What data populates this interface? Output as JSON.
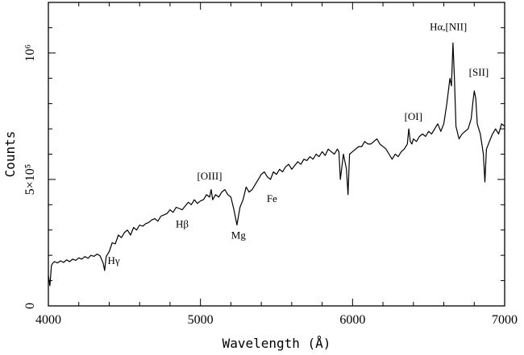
{
  "chart_data": {
    "type": "line",
    "title": "",
    "xlabel": "Wavelength (Å)",
    "ylabel": "Counts",
    "xlim": [
      4000,
      7000
    ],
    "ylim": [
      0,
      1200000
    ],
    "x_ticks": [
      {
        "value": 4000,
        "label": "4000"
      },
      {
        "value": 5000,
        "label": "5000"
      },
      {
        "value": 6000,
        "label": "6000"
      },
      {
        "value": 7000,
        "label": "7000"
      }
    ],
    "y_ticks": [
      {
        "value": 0,
        "label": "0"
      },
      {
        "value": 500000,
        "label": "5×10⁵"
      },
      {
        "value": 1000000,
        "label": "10⁶"
      }
    ],
    "grid": false,
    "series": [
      {
        "x": [
          4000,
          4010,
          4020,
          4030,
          4040,
          4060,
          4080,
          4100,
          4120,
          4140,
          4160,
          4180,
          4200,
          4220,
          4240,
          4260,
          4280,
          4300,
          4320,
          4340,
          4360,
          4370,
          4380,
          4400,
          4420,
          4440,
          4460,
          4480,
          4500,
          4520,
          4540,
          4560,
          4580,
          4600,
          4620,
          4640,
          4660,
          4680,
          4700,
          4720,
          4740,
          4760,
          4780,
          4800,
          4820,
          4840,
          4860,
          4880,
          4900,
          4920,
          4940,
          4960,
          4980,
          5000,
          5020,
          5040,
          5060,
          5070,
          5080,
          5100,
          5120,
          5140,
          5160,
          5180,
          5200,
          5220,
          5240,
          5260,
          5280,
          5300,
          5320,
          5340,
          5360,
          5380,
          5400,
          5420,
          5440,
          5460,
          5480,
          5500,
          5520,
          5540,
          5560,
          5580,
          5600,
          5620,
          5640,
          5660,
          5680,
          5700,
          5720,
          5740,
          5760,
          5780,
          5800,
          5820,
          5840,
          5860,
          5880,
          5890,
          5900,
          5910,
          5920,
          5940,
          5960,
          5970,
          5980,
          6000,
          6020,
          6040,
          6060,
          6080,
          6100,
          6120,
          6140,
          6160,
          6180,
          6200,
          6220,
          6240,
          6260,
          6280,
          6300,
          6320,
          6340,
          6360,
          6370,
          6380,
          6390,
          6400,
          6420,
          6440,
          6460,
          6480,
          6500,
          6520,
          6540,
          6560,
          6580,
          6600,
          6620,
          6640,
          6650,
          6660,
          6670,
          6680,
          6700,
          6720,
          6740,
          6760,
          6780,
          6790,
          6800,
          6810,
          6820,
          6840,
          6860,
          6870,
          6880,
          6900,
          6920,
          6940,
          6960,
          6980,
          7000
        ],
        "y": [
          120000,
          80000,
          160000,
          170000,
          175000,
          170000,
          178000,
          172000,
          182000,
          175000,
          185000,
          180000,
          190000,
          185000,
          195000,
          188000,
          200000,
          196000,
          205000,
          198000,
          170000,
          140000,
          195000,
          215000,
          250000,
          245000,
          280000,
          270000,
          290000,
          300000,
          280000,
          310000,
          300000,
          320000,
          315000,
          325000,
          330000,
          340000,
          345000,
          335000,
          355000,
          360000,
          365000,
          380000,
          370000,
          390000,
          385000,
          380000,
          395000,
          410000,
          400000,
          420000,
          405000,
          415000,
          420000,
          440000,
          430000,
          460000,
          420000,
          440000,
          430000,
          450000,
          460000,
          440000,
          430000,
          380000,
          320000,
          390000,
          420000,
          470000,
          450000,
          460000,
          480000,
          500000,
          520000,
          530000,
          510000,
          500000,
          530000,
          520000,
          540000,
          530000,
          550000,
          560000,
          540000,
          555000,
          570000,
          560000,
          580000,
          575000,
          590000,
          580000,
          600000,
          590000,
          610000,
          595000,
          620000,
          610000,
          600000,
          610000,
          620000,
          610000,
          500000,
          600000,
          540000,
          440000,
          600000,
          610000,
          620000,
          630000,
          630000,
          650000,
          640000,
          640000,
          650000,
          660000,
          640000,
          630000,
          620000,
          600000,
          580000,
          600000,
          590000,
          610000,
          620000,
          640000,
          700000,
          650000,
          640000,
          660000,
          650000,
          670000,
          680000,
          670000,
          690000,
          680000,
          700000,
          720000,
          690000,
          720000,
          800000,
          900000,
          870000,
          1040000,
          900000,
          710000,
          660000,
          680000,
          690000,
          700000,
          740000,
          800000,
          850000,
          820000,
          720000,
          680000,
          600000,
          490000,
          620000,
          650000,
          680000,
          700000,
          680000,
          720000,
          710000
        ]
      }
    ],
    "annotations": [
      {
        "text": "Hγ",
        "x": 4430,
        "y": 165000
      },
      {
        "text": "Hβ",
        "x": 4880,
        "y": 310000
      },
      {
        "text": "[OIII]",
        "x": 5060,
        "y": 500000
      },
      {
        "text": "Mg",
        "x": 5250,
        "y": 265000
      },
      {
        "text": "Fe",
        "x": 5470,
        "y": 410000
      },
      {
        "text": "[OI]",
        "x": 6400,
        "y": 735000
      },
      {
        "text": "Hα,[NII]",
        "x": 6630,
        "y": 1090000
      },
      {
        "text": "[SII]",
        "x": 6830,
        "y": 910000
      }
    ]
  }
}
